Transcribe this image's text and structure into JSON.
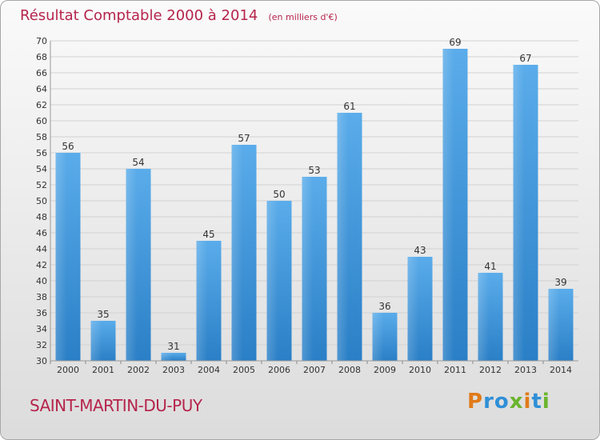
{
  "chart_data": {
    "type": "bar",
    "title": "Résultat Comptable 2000 à 2014",
    "unit_note": "(en milliers d'€)",
    "categories": [
      "2000",
      "2001",
      "2002",
      "2003",
      "2004",
      "2005",
      "2006",
      "2007",
      "2008",
      "2009",
      "2010",
      "2011",
      "2012",
      "2013",
      "2014"
    ],
    "values": [
      56,
      35,
      54,
      31,
      45,
      57,
      50,
      53,
      61,
      36,
      43,
      69,
      41,
      67,
      39
    ],
    "ylim": [
      30,
      70
    ],
    "yticks": [
      30,
      32,
      34,
      36,
      38,
      40,
      42,
      44,
      46,
      48,
      50,
      52,
      54,
      56,
      58,
      60,
      62,
      64,
      66,
      68,
      70
    ],
    "grid": true,
    "bar_color": "#3a93d9",
    "title_color": "#b5244b"
  },
  "footer": {
    "commune": "SAINT-MARTIN-DU-PUY",
    "logo_text": "Proxiti",
    "logo_colors": [
      "#e07b1a",
      "#2f8fd6",
      "#2f8fd6",
      "#6ab42d",
      "#e07b1a",
      "#2f8fd6",
      "#6ab42d"
    ]
  }
}
